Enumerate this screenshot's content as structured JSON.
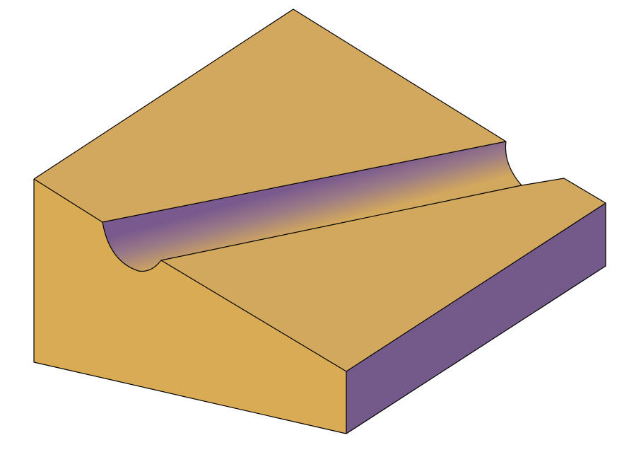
{
  "scene": {
    "colors": {
      "background": "#ffffff",
      "top_face": "#d2a75e",
      "left_face": "#d9ab55",
      "right_face": "#745a8a",
      "groove_light": "#d2a75e",
      "groove_dark": "#7a5a8e",
      "edge": "#000000"
    }
  }
}
